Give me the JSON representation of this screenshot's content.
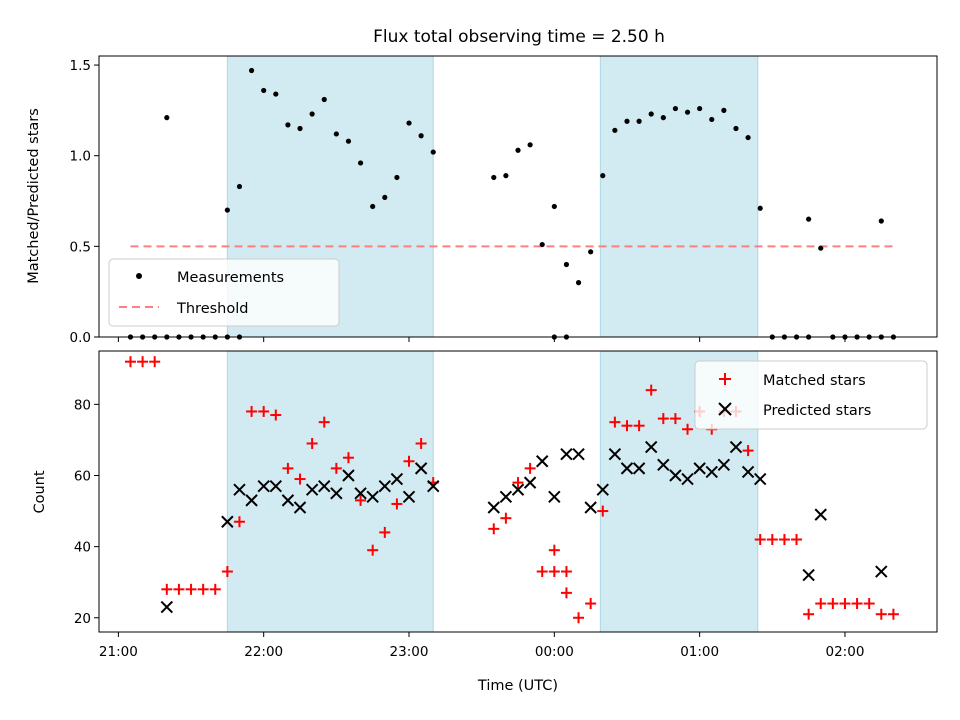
{
  "chart_data": [
    {
      "type": "scatter",
      "title": "Flux total observing time = 2.50 h",
      "xlabel": "",
      "ylabel": "Matched/Predicted stars",
      "ylim": [
        0,
        1.55
      ],
      "yticks": [
        "0.0",
        "0.5",
        "1.0",
        "1.5"
      ],
      "x_axis": "time (UTC)",
      "xlim": [
        "20:52",
        "02:38"
      ],
      "shaded_intervals": [
        [
          "21:45",
          "23:10"
        ],
        [
          "00:19",
          "01:24"
        ]
      ],
      "shade_color": "#add8e6",
      "legend": {
        "placement": "lower-left",
        "entries": [
          "Measurements",
          "Threshold"
        ]
      },
      "threshold": {
        "name": "Threshold",
        "value": 0.5,
        "x_range": [
          "21:05",
          "02:20"
        ],
        "color": "#ff7f7f"
      },
      "series": [
        {
          "name": "Measurements",
          "color": "#000000",
          "points": [
            [
              "21:05",
              0
            ],
            [
              "21:10",
              0
            ],
            [
              "21:15",
              0
            ],
            [
              "21:20",
              0
            ],
            [
              "21:25",
              0
            ],
            [
              "21:30",
              0
            ],
            [
              "21:35",
              0
            ],
            [
              "21:40",
              0
            ],
            [
              "21:45",
              0
            ],
            [
              "21:50",
              0
            ],
            [
              "21:20",
              1.21
            ],
            [
              "21:45",
              0.7
            ],
            [
              "21:50",
              0.83
            ],
            [
              "21:55",
              1.47
            ],
            [
              "22:00",
              1.36
            ],
            [
              "22:05",
              1.34
            ],
            [
              "22:10",
              1.17
            ],
            [
              "22:15",
              1.15
            ],
            [
              "22:20",
              1.23
            ],
            [
              "22:25",
              1.31
            ],
            [
              "22:30",
              1.12
            ],
            [
              "22:35",
              1.08
            ],
            [
              "22:40",
              0.96
            ],
            [
              "22:45",
              0.72
            ],
            [
              "22:50",
              0.77
            ],
            [
              "22:55",
              0.88
            ],
            [
              "23:00",
              1.18
            ],
            [
              "23:05",
              1.11
            ],
            [
              "23:10",
              1.02
            ],
            [
              "23:35",
              0.88
            ],
            [
              "23:40",
              0.89
            ],
            [
              "23:45",
              1.03
            ],
            [
              "23:50",
              1.06
            ],
            [
              "23:55",
              0.51
            ],
            [
              "00:00",
              0
            ],
            [
              "00:05",
              0
            ],
            [
              "00:00",
              0.72
            ],
            [
              "00:05",
              0.4
            ],
            [
              "00:10",
              0.3
            ],
            [
              "00:15",
              0.47
            ],
            [
              "00:20",
              0.89
            ],
            [
              "00:25",
              1.14
            ],
            [
              "00:30",
              1.19
            ],
            [
              "00:35",
              1.19
            ],
            [
              "00:40",
              1.23
            ],
            [
              "00:45",
              1.21
            ],
            [
              "00:50",
              1.26
            ],
            [
              "00:55",
              1.24
            ],
            [
              "01:00",
              1.26
            ],
            [
              "01:05",
              1.2
            ],
            [
              "01:10",
              1.25
            ],
            [
              "01:15",
              1.15
            ],
            [
              "01:20",
              1.1
            ],
            [
              "01:25",
              0.71
            ],
            [
              "01:30",
              0
            ],
            [
              "01:35",
              0
            ],
            [
              "01:40",
              0
            ],
            [
              "01:45",
              0
            ],
            [
              "01:45",
              0.65
            ],
            [
              "01:50",
              0.49
            ],
            [
              "01:55",
              0
            ],
            [
              "02:00",
              0
            ],
            [
              "02:05",
              0
            ],
            [
              "02:10",
              0
            ],
            [
              "02:15",
              0
            ],
            [
              "02:15",
              0.64
            ],
            [
              "02:20",
              0
            ]
          ]
        }
      ]
    },
    {
      "type": "scatter",
      "title": "",
      "xlabel": "Time (UTC)",
      "ylabel": "Count",
      "ylim": [
        16,
        95
      ],
      "yticks": [
        "20",
        "40",
        "60",
        "80"
      ],
      "xticks": [
        "21:00",
        "22:00",
        "23:00",
        "00:00",
        "01:00",
        "02:00"
      ],
      "xlim": [
        "20:52",
        "02:38"
      ],
      "shaded_intervals": [
        [
          "21:45",
          "23:10"
        ],
        [
          "00:19",
          "01:24"
        ]
      ],
      "legend": {
        "placement": "top-right",
        "entries": [
          "Matched stars",
          "Predicted stars"
        ]
      },
      "series": [
        {
          "name": "Matched stars",
          "marker": "+",
          "color": "#ff0000",
          "points": [
            [
              "21:05",
              92
            ],
            [
              "21:10",
              92
            ],
            [
              "21:15",
              92
            ],
            [
              "21:20",
              28
            ],
            [
              "21:25",
              28
            ],
            [
              "21:30",
              28
            ],
            [
              "21:35",
              28
            ],
            [
              "21:40",
              28
            ],
            [
              "21:45",
              33
            ],
            [
              "21:50",
              47
            ],
            [
              "21:55",
              78
            ],
            [
              "22:00",
              78
            ],
            [
              "22:05",
              77
            ],
            [
              "22:10",
              62
            ],
            [
              "22:15",
              59
            ],
            [
              "22:20",
              69
            ],
            [
              "22:25",
              75
            ],
            [
              "22:30",
              62
            ],
            [
              "22:35",
              65
            ],
            [
              "22:40",
              53
            ],
            [
              "22:45",
              39
            ],
            [
              "22:50",
              44
            ],
            [
              "22:55",
              52
            ],
            [
              "23:00",
              64
            ],
            [
              "23:05",
              69
            ],
            [
              "23:10",
              58
            ],
            [
              "23:35",
              45
            ],
            [
              "23:40",
              48
            ],
            [
              "23:45",
              58
            ],
            [
              "23:50",
              62
            ],
            [
              "23:55",
              33
            ],
            [
              "00:00",
              33
            ],
            [
              "00:05",
              33
            ],
            [
              "00:00",
              39
            ],
            [
              "00:05",
              27
            ],
            [
              "00:10",
              20
            ],
            [
              "00:15",
              24
            ],
            [
              "00:20",
              50
            ],
            [
              "00:25",
              75
            ],
            [
              "00:30",
              74
            ],
            [
              "00:35",
              74
            ],
            [
              "00:40",
              84
            ],
            [
              "00:45",
              76
            ],
            [
              "00:50",
              76
            ],
            [
              "00:55",
              73
            ],
            [
              "01:00",
              78
            ],
            [
              "01:05",
              73
            ],
            [
              "01:10",
              78
            ],
            [
              "01:15",
              78
            ],
            [
              "01:20",
              67
            ],
            [
              "01:25",
              42
            ],
            [
              "01:30",
              42
            ],
            [
              "01:35",
              42
            ],
            [
              "01:40",
              42
            ],
            [
              "01:45",
              21
            ],
            [
              "01:50",
              24
            ],
            [
              "01:55",
              24
            ],
            [
              "02:00",
              24
            ],
            [
              "02:05",
              24
            ],
            [
              "02:10",
              24
            ],
            [
              "02:15",
              21
            ],
            [
              "02:20",
              21
            ]
          ]
        },
        {
          "name": "Predicted stars",
          "marker": "x",
          "color": "#000000",
          "points": [
            [
              "21:20",
              23
            ],
            [
              "21:45",
              47
            ],
            [
              "21:50",
              56
            ],
            [
              "21:55",
              53
            ],
            [
              "22:00",
              57
            ],
            [
              "22:05",
              57
            ],
            [
              "22:10",
              53
            ],
            [
              "22:15",
              51
            ],
            [
              "22:20",
              56
            ],
            [
              "22:25",
              57
            ],
            [
              "22:30",
              55
            ],
            [
              "22:35",
              60
            ],
            [
              "22:40",
              55
            ],
            [
              "22:45",
              54
            ],
            [
              "22:50",
              57
            ],
            [
              "22:55",
              59
            ],
            [
              "23:00",
              54
            ],
            [
              "23:05",
              62
            ],
            [
              "23:10",
              57
            ],
            [
              "23:35",
              51
            ],
            [
              "23:40",
              54
            ],
            [
              "23:45",
              56
            ],
            [
              "23:50",
              58
            ],
            [
              "23:55",
              64
            ],
            [
              "00:00",
              54
            ],
            [
              "00:05",
              66
            ],
            [
              "00:10",
              66
            ],
            [
              "00:15",
              51
            ],
            [
              "00:20",
              56
            ],
            [
              "00:25",
              66
            ],
            [
              "00:30",
              62
            ],
            [
              "00:35",
              62
            ],
            [
              "00:40",
              68
            ],
            [
              "00:45",
              63
            ],
            [
              "00:50",
              60
            ],
            [
              "00:55",
              59
            ],
            [
              "01:00",
              62
            ],
            [
              "01:05",
              61
            ],
            [
              "01:10",
              63
            ],
            [
              "01:15",
              68
            ],
            [
              "01:20",
              61
            ],
            [
              "01:25",
              59
            ],
            [
              "01:45",
              32
            ],
            [
              "01:50",
              49
            ],
            [
              "02:15",
              33
            ]
          ]
        }
      ]
    }
  ]
}
